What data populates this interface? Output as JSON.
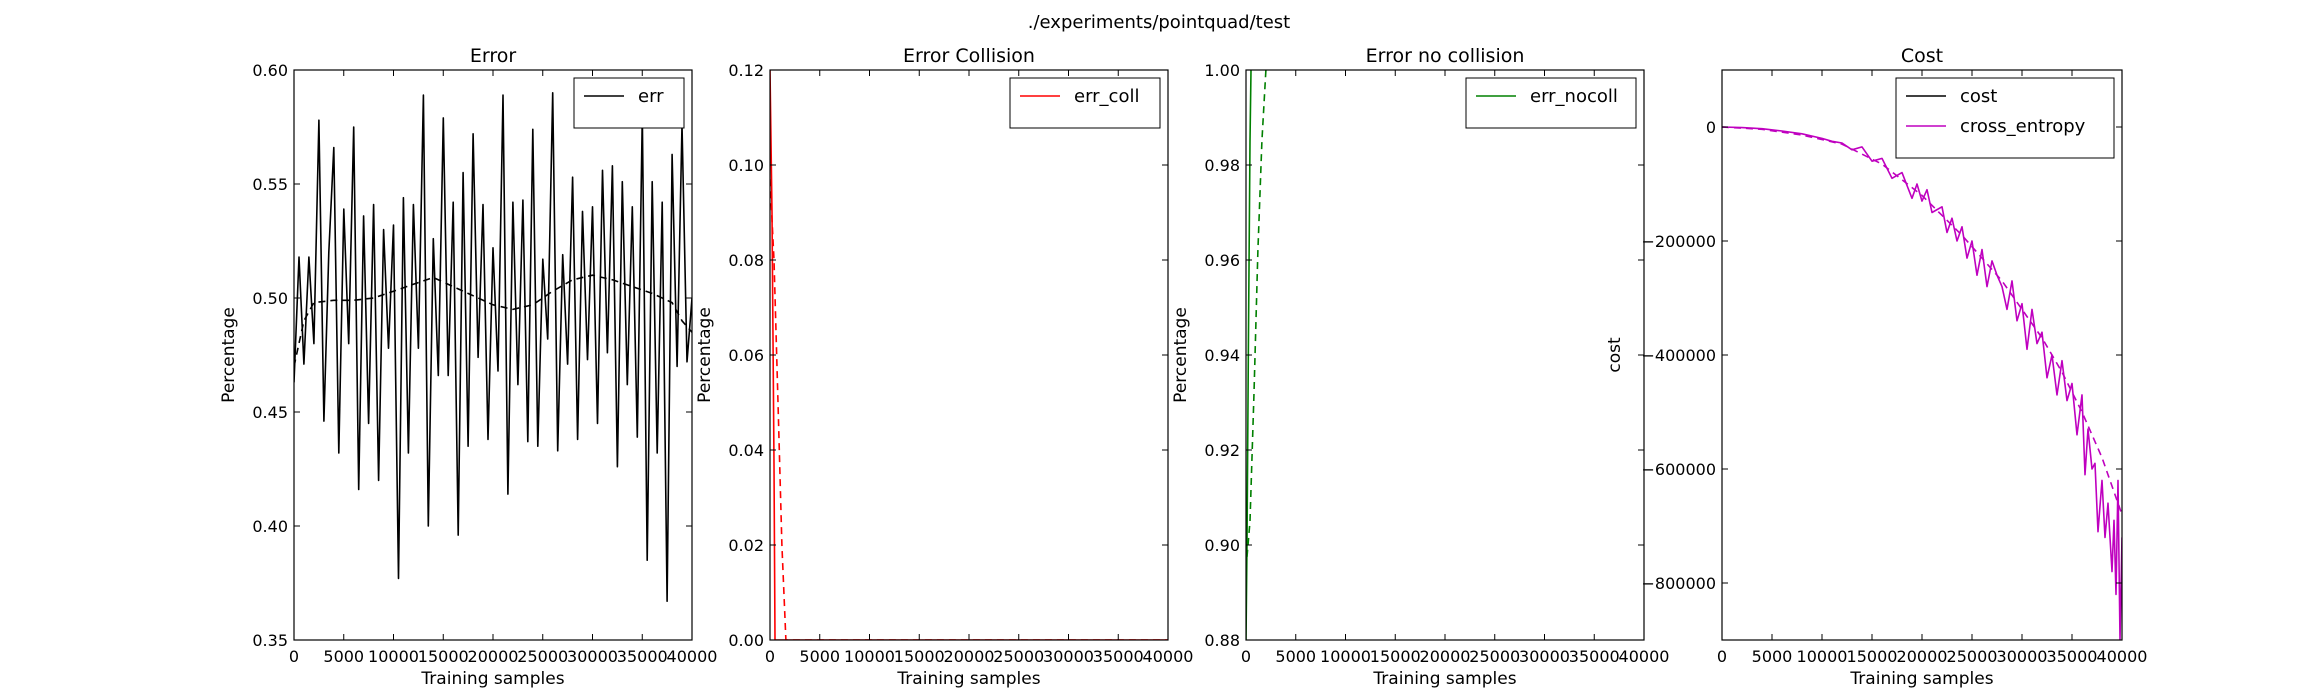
{
  "figure": {
    "suptitle": "./experiments/pointquad/test"
  },
  "colors": {
    "err": "#000000",
    "err_coll": "#ff0000",
    "err_nocoll": "#008000",
    "cost": "#000000",
    "cross_entropy": "#bf00bf"
  },
  "chart_data": [
    {
      "id": "error",
      "type": "line",
      "title": "Error",
      "xlabel": "Training samples",
      "ylabel": "Percentage",
      "xlim": [
        0,
        40000
      ],
      "ylim": [
        0.35,
        0.6
      ],
      "xticks": [
        0,
        5000,
        10000,
        15000,
        20000,
        25000,
        30000,
        35000,
        40000
      ],
      "yticks": [
        0.35,
        0.4,
        0.45,
        0.5,
        0.55,
        0.6
      ],
      "ytick_labels": [
        "0.35",
        "0.40",
        "0.45",
        "0.50",
        "0.55",
        "0.60"
      ],
      "legend": {
        "position": "top-right"
      },
      "series": [
        {
          "name": "err",
          "color": "#000000",
          "style": "solid",
          "x": [
            0,
            500,
            1000,
            1500,
            2000,
            2500,
            3000,
            3500,
            4000,
            4500,
            5000,
            5500,
            6000,
            6500,
            7000,
            7500,
            8000,
            8500,
            9000,
            9500,
            10000,
            10500,
            11000,
            11500,
            12000,
            12500,
            13000,
            13500,
            14000,
            14500,
            15000,
            15500,
            16000,
            16500,
            17000,
            17500,
            18000,
            18500,
            19000,
            19500,
            20000,
            20500,
            21000,
            21500,
            22000,
            22500,
            23000,
            23500,
            24000,
            24500,
            25000,
            25500,
            26000,
            26500,
            27000,
            27500,
            28000,
            28500,
            29000,
            29500,
            30000,
            30500,
            31000,
            31500,
            32000,
            32500,
            33000,
            33500,
            34000,
            34500,
            35000,
            35500,
            36000,
            36500,
            37000,
            37500,
            38000,
            38500,
            39000,
            39500,
            40000
          ],
          "y": [
            0.463,
            0.518,
            0.471,
            0.518,
            0.48,
            0.578,
            0.446,
            0.52,
            0.566,
            0.432,
            0.539,
            0.48,
            0.575,
            0.416,
            0.536,
            0.445,
            0.541,
            0.42,
            0.53,
            0.478,
            0.532,
            0.377,
            0.544,
            0.432,
            0.541,
            0.478,
            0.589,
            0.4,
            0.526,
            0.466,
            0.579,
            0.466,
            0.542,
            0.396,
            0.555,
            0.435,
            0.572,
            0.474,
            0.541,
            0.438,
            0.522,
            0.468,
            0.589,
            0.414,
            0.542,
            0.462,
            0.543,
            0.437,
            0.574,
            0.435,
            0.517,
            0.482,
            0.59,
            0.433,
            0.519,
            0.471,
            0.553,
            0.438,
            0.538,
            0.473,
            0.54,
            0.445,
            0.556,
            0.476,
            0.558,
            0.426,
            0.551,
            0.462,
            0.54,
            0.439,
            0.58,
            0.385,
            0.551,
            0.432,
            0.542,
            0.367,
            0.563,
            0.47,
            0.576,
            0.472,
            0.5
          ]
        },
        {
          "name": "",
          "color": "#000000",
          "style": "dashed",
          "x": [
            0,
            1000,
            2000,
            4000,
            6000,
            8000,
            10000,
            12000,
            14000,
            16000,
            18000,
            20000,
            22000,
            24000,
            26000,
            28000,
            30000,
            32000,
            34000,
            36000,
            38000,
            39000,
            40000
          ],
          "y": [
            0.47,
            0.49,
            0.498,
            0.499,
            0.499,
            0.5,
            0.503,
            0.506,
            0.509,
            0.505,
            0.501,
            0.497,
            0.495,
            0.497,
            0.503,
            0.508,
            0.51,
            0.508,
            0.505,
            0.502,
            0.498,
            0.49,
            0.485
          ]
        }
      ]
    },
    {
      "id": "error-collision",
      "type": "line",
      "title": "Error Collision",
      "xlabel": "Training samples",
      "ylabel": "Percentage",
      "xlim": [
        0,
        40000
      ],
      "ylim": [
        0.0,
        0.12
      ],
      "xticks": [
        0,
        5000,
        10000,
        15000,
        20000,
        25000,
        30000,
        35000,
        40000
      ],
      "yticks": [
        0.0,
        0.02,
        0.04,
        0.06,
        0.08,
        0.1,
        0.12
      ],
      "ytick_labels": [
        "0.00",
        "0.02",
        "0.04",
        "0.06",
        "0.08",
        "0.10",
        "0.12"
      ],
      "legend": {
        "position": "top-right"
      },
      "series": [
        {
          "name": "err_coll",
          "color": "#ff0000",
          "style": "solid",
          "x": [
            0,
            200,
            400,
            500,
            40000
          ],
          "y": [
            0.12,
            0.09,
            0.037,
            0.0,
            0.0
          ]
        },
        {
          "name": "",
          "color": "#ff0000",
          "style": "dashed",
          "x": [
            0,
            400,
            800,
            1200,
            1600,
            40000
          ],
          "y": [
            0.097,
            0.08,
            0.05,
            0.02,
            0.0,
            0.0
          ]
        }
      ]
    },
    {
      "id": "error-no-collision",
      "type": "line",
      "title": "Error no collision",
      "xlabel": "Training samples",
      "ylabel": "Percentage",
      "xlim": [
        0,
        40000
      ],
      "ylim": [
        0.88,
        1.0
      ],
      "xticks": [
        0,
        5000,
        10000,
        15000,
        20000,
        25000,
        30000,
        35000,
        40000
      ],
      "yticks": [
        0.88,
        0.9,
        0.92,
        0.94,
        0.96,
        0.98,
        1.0
      ],
      "ytick_labels": [
        "0.88",
        "0.90",
        "0.92",
        "0.94",
        "0.96",
        "0.98",
        "1.00"
      ],
      "legend": {
        "position": "top-right"
      },
      "series": [
        {
          "name": "err_nocoll",
          "color": "#008000",
          "style": "solid",
          "x": [
            0,
            100,
            250,
            400,
            500
          ],
          "y": [
            0.88,
            0.9,
            0.945,
            0.985,
            1.0
          ]
        },
        {
          "name": "",
          "color": "#008000",
          "style": "dashed",
          "x": [
            0,
            400,
            800,
            1200,
            1600,
            2000
          ],
          "y": [
            0.895,
            0.905,
            0.932,
            0.962,
            0.985,
            1.0
          ]
        }
      ]
    },
    {
      "id": "cost",
      "type": "line",
      "title": "Cost",
      "xlabel": "Training samples",
      "ylabel": "cost",
      "xlim": [
        0,
        40000
      ],
      "ylim": [
        -900000,
        100000
      ],
      "xticks": [
        0,
        5000,
        10000,
        15000,
        20000,
        25000,
        30000,
        35000,
        40000
      ],
      "yticks": [
        0,
        -200000,
        -400000,
        -600000,
        -800000
      ],
      "ytick_labels": [
        "0",
        "−200000",
        "−400000",
        "−600000",
        "−800000"
      ],
      "legend": {
        "position": "top-right"
      },
      "series": [
        {
          "name": "cost",
          "color": "#000000",
          "style": "solid",
          "x": [],
          "y": []
        },
        {
          "name": "cross_entropy",
          "color": "#bf00bf",
          "style": "solid",
          "x": [
            0,
            2000,
            4000,
            6000,
            8000,
            10000,
            11000,
            12000,
            13000,
            14000,
            15000,
            16000,
            17000,
            18000,
            19000,
            19500,
            20000,
            20500,
            21000,
            22000,
            22500,
            23000,
            23500,
            24000,
            24500,
            25000,
            25500,
            26000,
            26500,
            27000,
            27500,
            28000,
            28500,
            29000,
            29500,
            30000,
            30500,
            31000,
            31500,
            32000,
            32500,
            33000,
            33500,
            34000,
            34500,
            35000,
            35500,
            36000,
            36300,
            36600,
            37000,
            37300,
            37600,
            38000,
            38300,
            38600,
            39000,
            39200,
            39400,
            39600,
            39800,
            40000
          ],
          "y": [
            0,
            -1000,
            -3000,
            -7000,
            -12000,
            -20000,
            -25000,
            -28000,
            -40000,
            -35000,
            -60000,
            -55000,
            -90000,
            -80000,
            -125000,
            -100000,
            -130000,
            -110000,
            -150000,
            -140000,
            -185000,
            -160000,
            -200000,
            -175000,
            -230000,
            -200000,
            -260000,
            -215000,
            -280000,
            -235000,
            -260000,
            -280000,
            -320000,
            -270000,
            -340000,
            -310000,
            -390000,
            -320000,
            -380000,
            -360000,
            -440000,
            -400000,
            -470000,
            -410000,
            -480000,
            -450000,
            -540000,
            -470000,
            -610000,
            -530000,
            -600000,
            -590000,
            -710000,
            -620000,
            -720000,
            -660000,
            -780000,
            -690000,
            -820000,
            -620000,
            -900000,
            -720000
          ]
        },
        {
          "name": "",
          "color": "#bf00bf",
          "style": "dashed",
          "x": [
            0,
            4000,
            8000,
            12000,
            16000,
            20000,
            24000,
            28000,
            32000,
            34000,
            36000,
            38000,
            40000
          ],
          "y": [
            0,
            -4000,
            -14000,
            -30000,
            -65000,
            -120000,
            -190000,
            -270000,
            -370000,
            -430000,
            -500000,
            -580000,
            -680000
          ]
        }
      ]
    }
  ]
}
